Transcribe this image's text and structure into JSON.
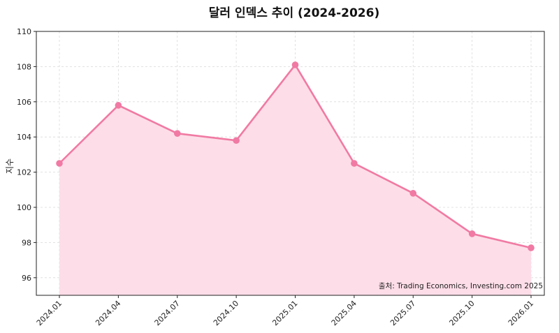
{
  "chart_data": {
    "type": "area",
    "title": "달러 인덱스 추이 (2024-2026)",
    "xlabel": "",
    "ylabel": "지수",
    "categories": [
      "2024.01",
      "2024.04",
      "2024.07",
      "2024.10",
      "2025.01",
      "2025.04",
      "2025.07",
      "2025.10",
      "2026.01"
    ],
    "values": [
      102.5,
      105.8,
      104.2,
      103.8,
      108.1,
      102.5,
      100.8,
      98.5,
      97.7
    ],
    "ylim": [
      95,
      110
    ],
    "yticks": [
      96,
      98,
      100,
      102,
      104,
      106,
      108,
      110
    ],
    "grid": true,
    "line_color": "#f07aa3",
    "fill_color": "#fddde8",
    "annotation": "출처: Trading Economics, Investing.com 2025"
  }
}
